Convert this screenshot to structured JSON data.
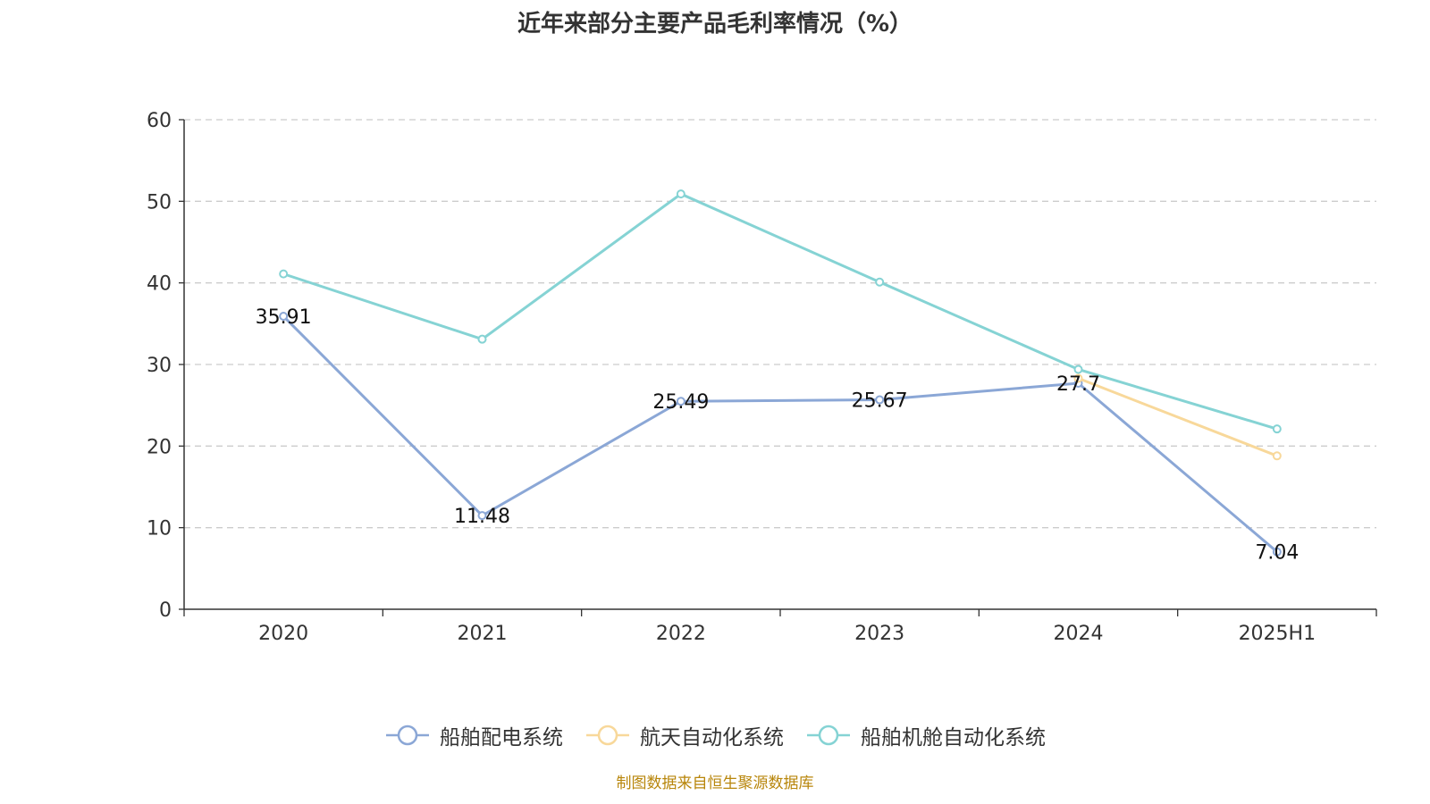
{
  "footer": "制图数据来自恒生聚源数据库",
  "chart_data": {
    "type": "line",
    "title": "近年来部分主要产品毛利率情况（%）",
    "xlabel": "",
    "ylabel": "",
    "categories": [
      "2020",
      "2021",
      "2022",
      "2023",
      "2024",
      "2025H1"
    ],
    "ylim": [
      0,
      60
    ],
    "yticks": [
      0,
      10,
      20,
      30,
      40,
      50,
      60
    ],
    "grid": true,
    "legend_position": "bottom",
    "series": [
      {
        "name": "船舶配电系统",
        "color": "#8ba7d6",
        "values": [
          35.91,
          11.48,
          25.49,
          25.67,
          27.7,
          7.04
        ],
        "labels": [
          "35.91",
          "11.48",
          "25.49",
          "25.67",
          "27.7",
          "7.04"
        ]
      },
      {
        "name": "航天自动化系统",
        "color": "#f8d89a",
        "values": [
          null,
          null,
          null,
          null,
          28.3,
          18.8
        ],
        "labels": []
      },
      {
        "name": "船舶机舱自动化系统",
        "color": "#85d3d4",
        "values": [
          41.1,
          33.1,
          50.9,
          40.1,
          29.4,
          22.1
        ],
        "labels": []
      }
    ]
  }
}
